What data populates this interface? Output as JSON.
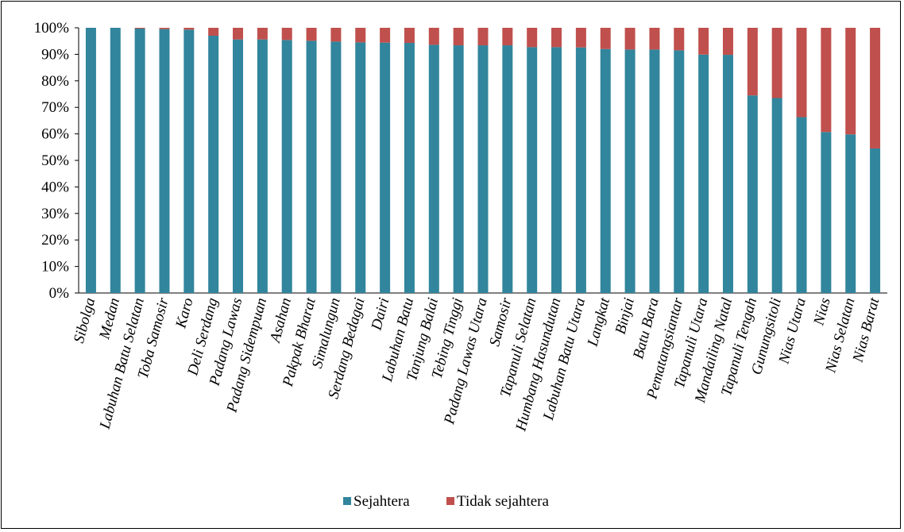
{
  "chart_data": {
    "type": "bar",
    "stacked": true,
    "percent": true,
    "categories": [
      "Sibolga",
      "Medan",
      "Labuhan Batu Selatan",
      "Toba Samosir",
      "Karo",
      "Deli Serdang",
      "Padang Lawas",
      "Padang Sidempuan",
      "Asahan",
      "Pakpak Bharat",
      "Simalungun",
      "Serdang Bedagai",
      "Dairi",
      "Labuhan Batu",
      "Tanjung Balai",
      "Tebing Tinggi",
      "Padang Lawas Utara",
      "Samosir",
      "Tapanuli Selatan",
      "Humbang Hasundutan",
      "Labuhan Batu Utara",
      "Langkat",
      "Binjai",
      "Batu Bara",
      "Pematangsiantar",
      "Tapanuli Utara",
      "Mandailing Natal",
      "Tapanuli Tengah",
      "Gunungsitoli",
      "Nias Utara",
      "Nias",
      "Nias Selatan",
      "Nias Barat"
    ],
    "series": [
      {
        "name": "Sejahtera",
        "color": "#31859c",
        "values": [
          100,
          100,
          99.7,
          99.5,
          99.3,
          97,
          95.6,
          95.6,
          95.4,
          95.1,
          94.8,
          94.5,
          94.4,
          94.3,
          93.6,
          93.4,
          93.4,
          93.4,
          92.7,
          92.7,
          92.6,
          92,
          91.8,
          91.8,
          91.5,
          89.9,
          89.8,
          74.5,
          73.5,
          66.3,
          60.7,
          59.8,
          54.5
        ]
      },
      {
        "name": "Tidak sejahtera",
        "color": "#c0504d",
        "values": [
          0,
          0,
          0.3,
          0.5,
          0.7,
          3,
          4.4,
          4.4,
          4.6,
          4.9,
          5.2,
          5.5,
          5.6,
          5.7,
          6.4,
          6.6,
          6.6,
          6.6,
          7.3,
          7.3,
          7.4,
          8,
          8.2,
          8.2,
          8.5,
          10.1,
          10.2,
          25.5,
          26.5,
          33.7,
          39.3,
          40.2,
          45.5
        ]
      }
    ],
    "y_ticks": [
      "0%",
      "10%",
      "20%",
      "30%",
      "40%",
      "50%",
      "60%",
      "70%",
      "80%",
      "90%",
      "100%"
    ],
    "ylim": [
      0,
      100
    ],
    "grid": false,
    "legend_position": "bottom",
    "title": "",
    "xlabel": "",
    "ylabel": ""
  }
}
